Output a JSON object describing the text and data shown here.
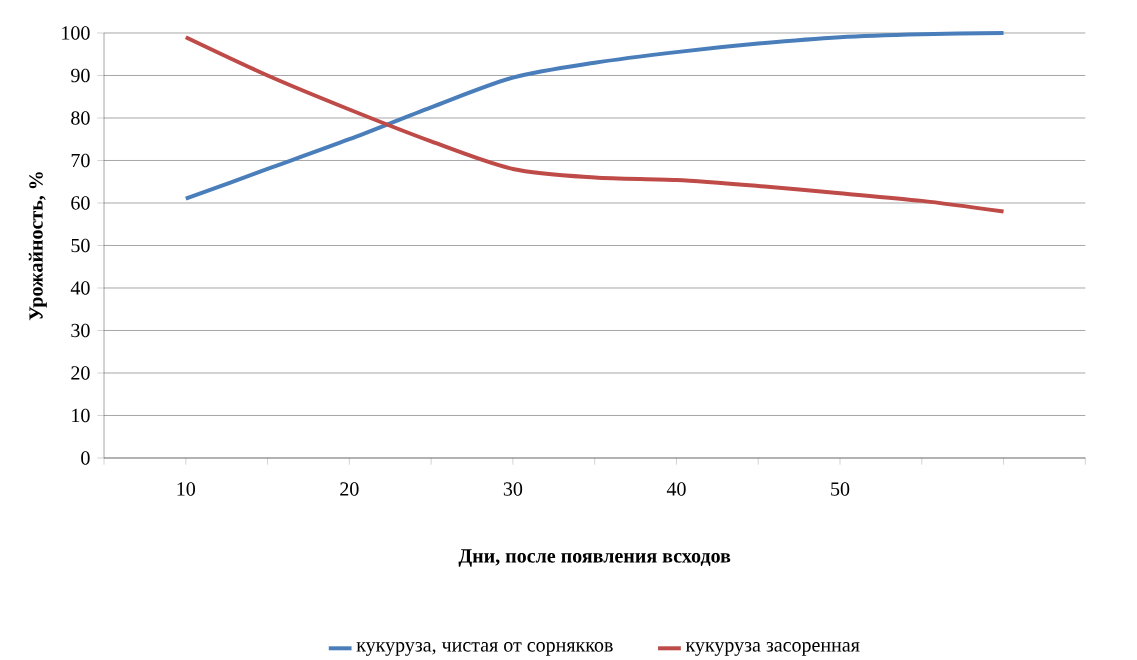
{
  "chart_data": {
    "type": "line",
    "xlabel": "Дни, после появления всходов",
    "ylabel": "Урожайность, %",
    "x": [
      10,
      15,
      20,
      25,
      30,
      35,
      40,
      45,
      50,
      55,
      60
    ],
    "series": [
      {
        "name": "кукуруза, чистая от сорнякков",
        "color": "#4a7ebb",
        "values": [
          61,
          68,
          75,
          82.5,
          89.5,
          93,
          95.5,
          97.5,
          99,
          99.7,
          100
        ]
      },
      {
        "name": "кукуруза засоренная",
        "color": "#be4b48",
        "values": [
          99,
          90,
          82,
          74.5,
          68,
          66,
          65.4,
          64,
          62.3,
          60.5,
          58
        ]
      }
    ],
    "xlim": [
      5,
      65
    ],
    "xticks": [
      {
        "value": 5,
        "label": null
      },
      10,
      {
        "value": 15,
        "label": null
      },
      20,
      {
        "value": 25,
        "label": null
      },
      30,
      {
        "value": 35,
        "label": null
      },
      40,
      {
        "value": 45,
        "label": null
      },
      50,
      {
        "value": 55,
        "label": null
      },
      {
        "value": 60,
        "label": null
      },
      {
        "value": 65,
        "label": null
      }
    ],
    "ylim": [
      0,
      100
    ],
    "yticks": [
      0,
      10,
      20,
      30,
      40,
      50,
      60,
      70,
      80,
      90,
      100
    ],
    "grid": "y",
    "legend": "bottom",
    "line_style": "solid"
  }
}
